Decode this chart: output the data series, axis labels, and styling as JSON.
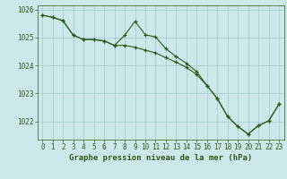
{
  "line1_x": [
    0,
    1,
    2,
    3,
    4,
    5,
    6,
    7,
    8,
    9,
    10,
    11,
    12,
    13,
    14,
    15,
    16,
    17,
    18,
    19,
    20,
    21,
    22,
    23
  ],
  "line1_y": [
    1025.8,
    1025.72,
    1025.6,
    1025.08,
    1024.93,
    1024.93,
    1024.88,
    1024.72,
    1025.08,
    1025.58,
    1025.1,
    1025.02,
    1024.6,
    1024.32,
    1024.08,
    1023.78,
    1023.28,
    1022.82,
    1022.18,
    1021.82,
    1021.55,
    1021.85,
    1022.02,
    1022.62
  ],
  "line2_x": [
    0,
    1,
    2,
    3,
    4,
    5,
    6,
    7,
    8,
    9,
    10,
    11,
    12,
    13,
    14,
    15,
    16,
    17,
    18,
    19,
    20,
    21,
    22,
    23
  ],
  "line2_y": [
    1025.8,
    1025.72,
    1025.6,
    1025.08,
    1024.93,
    1024.93,
    1024.88,
    1024.72,
    1024.72,
    1024.65,
    1024.55,
    1024.45,
    1024.28,
    1024.12,
    1023.93,
    1023.68,
    1023.28,
    1022.82,
    1022.18,
    1021.82,
    1021.55,
    1021.85,
    1022.02,
    1022.62
  ],
  "line_color": "#2d5a1b",
  "bg_color": "#cce8e8",
  "grid_color": "#99cccc",
  "title": "Graphe pression niveau de la mer (hPa)",
  "yticks": [
    1022,
    1023,
    1024,
    1025,
    1026
  ],
  "xticks": [
    0,
    1,
    2,
    3,
    4,
    5,
    6,
    7,
    8,
    9,
    10,
    11,
    12,
    13,
    14,
    15,
    16,
    17,
    18,
    19,
    20,
    21,
    22,
    23
  ],
  "ylim": [
    1021.35,
    1026.15
  ],
  "xlim": [
    -0.5,
    23.5
  ],
  "tick_fontsize": 5.5,
  "xlabel_fontsize": 6.5
}
